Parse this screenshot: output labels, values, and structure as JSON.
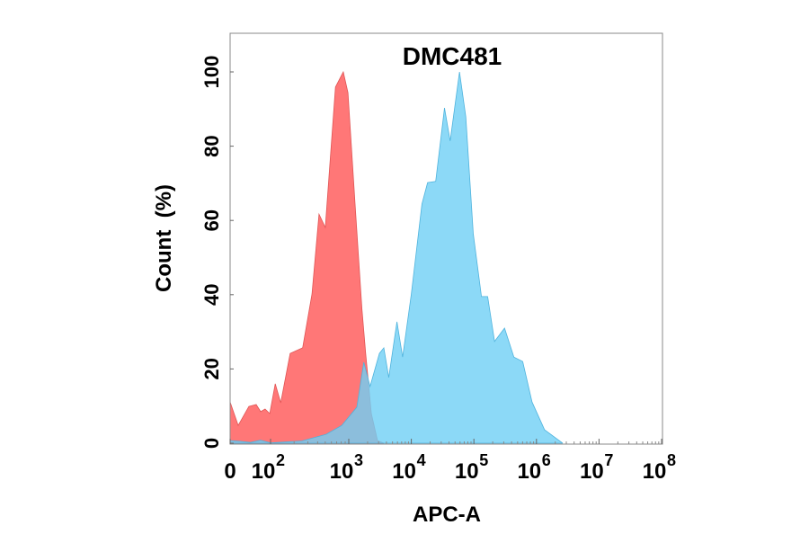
{
  "chart_data": {
    "type": "area",
    "title": "DMC481",
    "xlabel": "APC-A",
    "ylabel": "Count  (%)",
    "x_scale": "biexponential (log decades)",
    "xlim": [
      0,
      8
    ],
    "ylim": [
      0,
      110
    ],
    "x_ticks": [
      {
        "value": 0,
        "base": "0",
        "exp": ""
      },
      {
        "value": 2,
        "base": "10",
        "exp": "2"
      },
      {
        "value": 3,
        "base": "10",
        "exp": "3"
      },
      {
        "value": 4,
        "base": "10",
        "exp": "4"
      },
      {
        "value": 5,
        "base": "10",
        "exp": "5"
      },
      {
        "value": 6,
        "base": "10",
        "exp": "6"
      },
      {
        "value": 7,
        "base": "10",
        "exp": "7"
      },
      {
        "value": 8,
        "base": "10",
        "exp": "8"
      }
    ],
    "y_ticks": [
      "0",
      "20",
      "40",
      "60",
      "80",
      "100"
    ],
    "grid": false,
    "legend": "none",
    "series": [
      {
        "color": "#ff7070",
        "x_log10": [
          0,
          0.4,
          0.93,
          1.29,
          1.51,
          1.73,
          1.96,
          2.06,
          2.13,
          2.25,
          2.41,
          2.53,
          2.62,
          2.7,
          2.83,
          2.93,
          2.99,
          3.1,
          3.21,
          3.27,
          3.36,
          3.46,
          3.56
        ],
        "y": [
          11.1,
          4.8,
          9.9,
          10.4,
          8.5,
          9.2,
          8.0,
          16.0,
          10.9,
          24.2,
          25.7,
          40.2,
          61.7,
          58.1,
          95.9,
          100,
          94.4,
          64.4,
          36.3,
          24.2,
          8.0,
          0.7,
          0
        ]
      },
      {
        "color": "#6fd0f5",
        "x_log10": [
          0,
          0.5,
          1.0,
          1.5,
          2.0,
          2.4,
          2.71,
          2.91,
          3.13,
          3.24,
          3.34,
          3.49,
          3.56,
          3.64,
          3.77,
          3.86,
          4.0,
          4.17,
          4.26,
          4.39,
          4.53,
          4.62,
          4.77,
          4.87,
          4.99,
          5.12,
          5.22,
          5.33,
          5.49,
          5.64,
          5.78,
          5.93,
          6.13,
          6.42
        ],
        "y": [
          0.7,
          0.5,
          0.2,
          0.8,
          0.1,
          0.6,
          2.4,
          4.8,
          9.7,
          21.8,
          15.3,
          24.2,
          25.7,
          17.7,
          32.7,
          23.2,
          40.2,
          64.4,
          70.2,
          70.5,
          90.3,
          81.4,
          100,
          87.9,
          56.4,
          39.5,
          39.5,
          27.4,
          31.0,
          23.2,
          22.0,
          11.1,
          3.6,
          0
        ]
      }
    ]
  }
}
